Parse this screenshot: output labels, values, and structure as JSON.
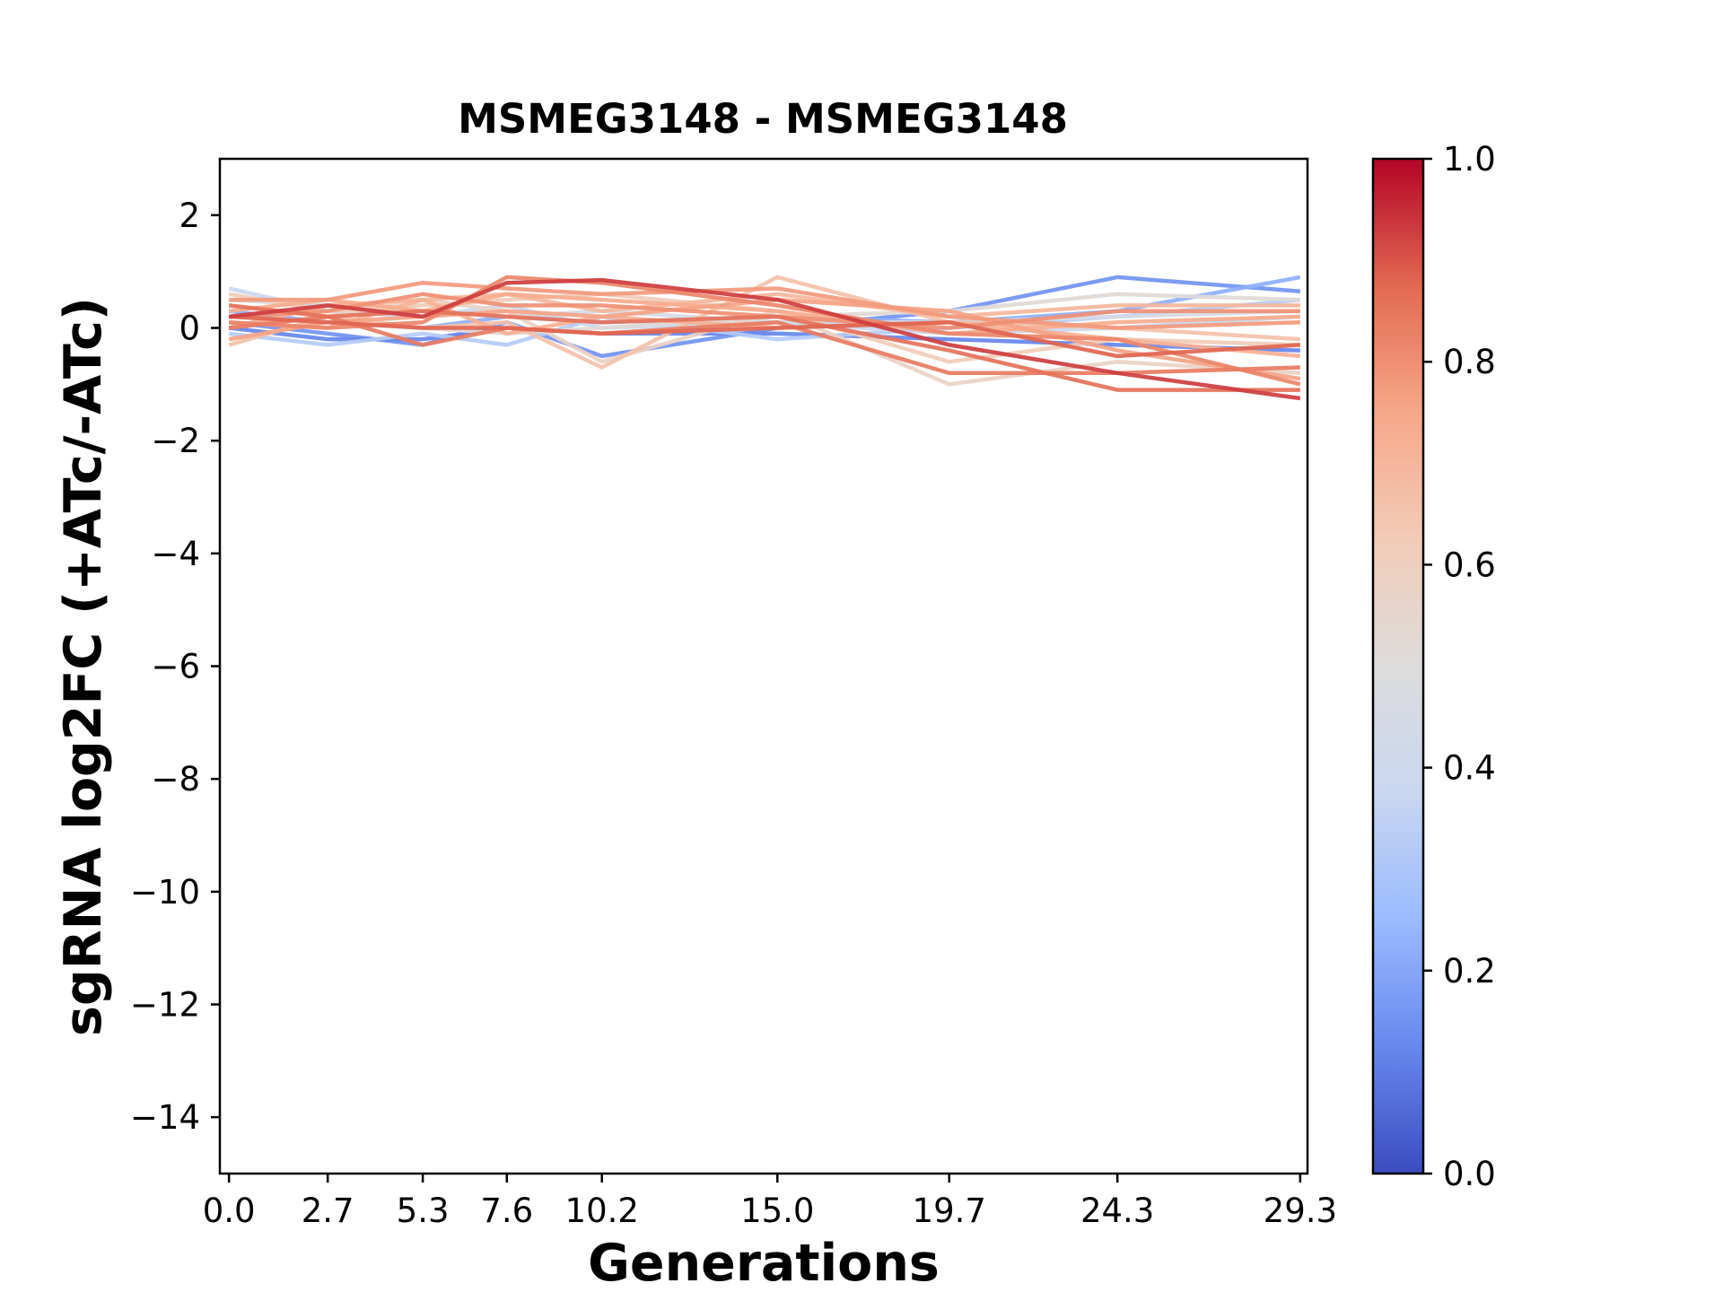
{
  "chart_data": {
    "type": "line",
    "title": "MSMEG3148 - MSMEG3148",
    "xlabel": "Generations",
    "ylabel": "sgRNA log2FC (+ATc/-ATc)",
    "x": [
      0.0,
      2.7,
      5.3,
      7.6,
      10.2,
      15.0,
      19.7,
      24.3,
      29.3
    ],
    "x_tick_labels": [
      "0.0",
      "2.7",
      "5.3",
      "7.6",
      "10.2",
      "15.0",
      "19.7",
      "24.3",
      "29.3"
    ],
    "ylim": [
      -15,
      3
    ],
    "y_ticks": [
      2,
      0,
      -2,
      -4,
      -6,
      -8,
      -10,
      -12,
      -14
    ],
    "y_tick_labels": [
      "2",
      "0",
      "−2",
      "−4",
      "−6",
      "−8",
      "−10",
      "−12",
      "−14"
    ],
    "grid": false,
    "colormap": "coolwarm",
    "colorbar": {
      "range": [
        0.0,
        1.0
      ],
      "ticks": [
        0.0,
        0.2,
        0.4,
        0.6,
        0.8,
        1.0
      ],
      "tick_labels": [
        "0.0",
        "0.2",
        "0.4",
        "0.6",
        "0.8",
        "1.0"
      ],
      "stops": [
        "#3b4cc0",
        "#6788ee",
        "#9abbff",
        "#c9d7f0",
        "#dddcdc",
        "#f2cbb7",
        "#f7a889",
        "#e26952",
        "#b40426"
      ]
    },
    "series": [
      {
        "c": 0.15,
        "values": [
          0.1,
          -0.1,
          -0.3,
          0.1,
          -0.5,
          0.0,
          0.3,
          0.9,
          0.65
        ]
      },
      {
        "c": 0.12,
        "values": [
          0.0,
          -0.2,
          -0.2,
          0.0,
          -0.1,
          -0.1,
          -0.2,
          -0.3,
          -0.4
        ]
      },
      {
        "c": 0.22,
        "values": [
          0.3,
          0.1,
          0.0,
          0.2,
          0.1,
          0.2,
          0.1,
          0.3,
          0.9
        ]
      },
      {
        "c": 0.32,
        "values": [
          -0.1,
          -0.3,
          -0.1,
          -0.3,
          0.2,
          -0.2,
          0.0,
          0.2,
          0.5
        ]
      },
      {
        "c": 0.38,
        "values": [
          0.7,
          0.3,
          0.2,
          0.4,
          0.0,
          0.1,
          -0.1,
          0.0,
          0.2
        ]
      },
      {
        "c": 0.45,
        "values": [
          0.5,
          0.4,
          0.3,
          0.2,
          0.3,
          0.1,
          0.1,
          0.2,
          0.3
        ]
      },
      {
        "c": 0.52,
        "values": [
          0.2,
          0.1,
          0.0,
          -0.1,
          0.0,
          0.2,
          0.3,
          0.6,
          0.5
        ]
      },
      {
        "c": 0.58,
        "values": [
          0.4,
          0.2,
          0.5,
          0.3,
          -0.6,
          0.3,
          -1.0,
          -0.6,
          -0.8
        ]
      },
      {
        "c": 0.62,
        "values": [
          0.6,
          0.3,
          0.4,
          0.5,
          0.6,
          0.3,
          -0.6,
          -0.2,
          -0.3
        ]
      },
      {
        "c": 0.66,
        "values": [
          -0.3,
          0.2,
          0.0,
          0.1,
          -0.7,
          0.9,
          0.1,
          0.0,
          -0.2
        ]
      },
      {
        "c": 0.7,
        "values": [
          0.1,
          0.0,
          0.5,
          0.6,
          0.3,
          0.6,
          0.2,
          0.4,
          0.4
        ]
      },
      {
        "c": 0.72,
        "values": [
          0.0,
          0.4,
          0.5,
          -0.1,
          0.2,
          0.0,
          0.1,
          -0.2,
          -0.5
        ]
      },
      {
        "c": 0.74,
        "values": [
          0.3,
          0.5,
          0.3,
          0.6,
          0.5,
          0.3,
          -0.1,
          0.1,
          0.2
        ]
      },
      {
        "c": 0.76,
        "values": [
          -0.2,
          0.1,
          0.2,
          0.3,
          0.2,
          0.5,
          0.3,
          -0.4,
          -0.9
        ]
      },
      {
        "c": 0.78,
        "values": [
          0.5,
          0.5,
          0.8,
          0.7,
          0.6,
          0.7,
          0.2,
          0.0,
          0.1
        ]
      },
      {
        "c": 0.8,
        "values": [
          0.2,
          0.3,
          0.6,
          0.4,
          0.4,
          0.2,
          0.0,
          0.3,
          0.3
        ]
      },
      {
        "c": 0.82,
        "values": [
          0.1,
          0.0,
          0.1,
          0.9,
          0.8,
          0.4,
          -0.1,
          -0.2,
          -1.0
        ]
      },
      {
        "c": 0.84,
        "values": [
          0.0,
          0.2,
          -0.3,
          0.0,
          -0.1,
          0.1,
          -0.8,
          -0.8,
          -0.7
        ]
      },
      {
        "c": 0.86,
        "values": [
          0.4,
          0.2,
          0.3,
          0.2,
          0.1,
          0.2,
          -0.4,
          -1.1,
          -1.1
        ]
      },
      {
        "c": 0.88,
        "values": [
          0.2,
          0.1,
          0.0,
          0.0,
          -0.1,
          0.0,
          0.1,
          -0.5,
          -0.3
        ]
      },
      {
        "c": 0.93,
        "values": [
          0.2,
          0.4,
          0.2,
          0.8,
          0.85,
          0.5,
          -0.3,
          -0.8,
          -1.25
        ]
      }
    ]
  }
}
